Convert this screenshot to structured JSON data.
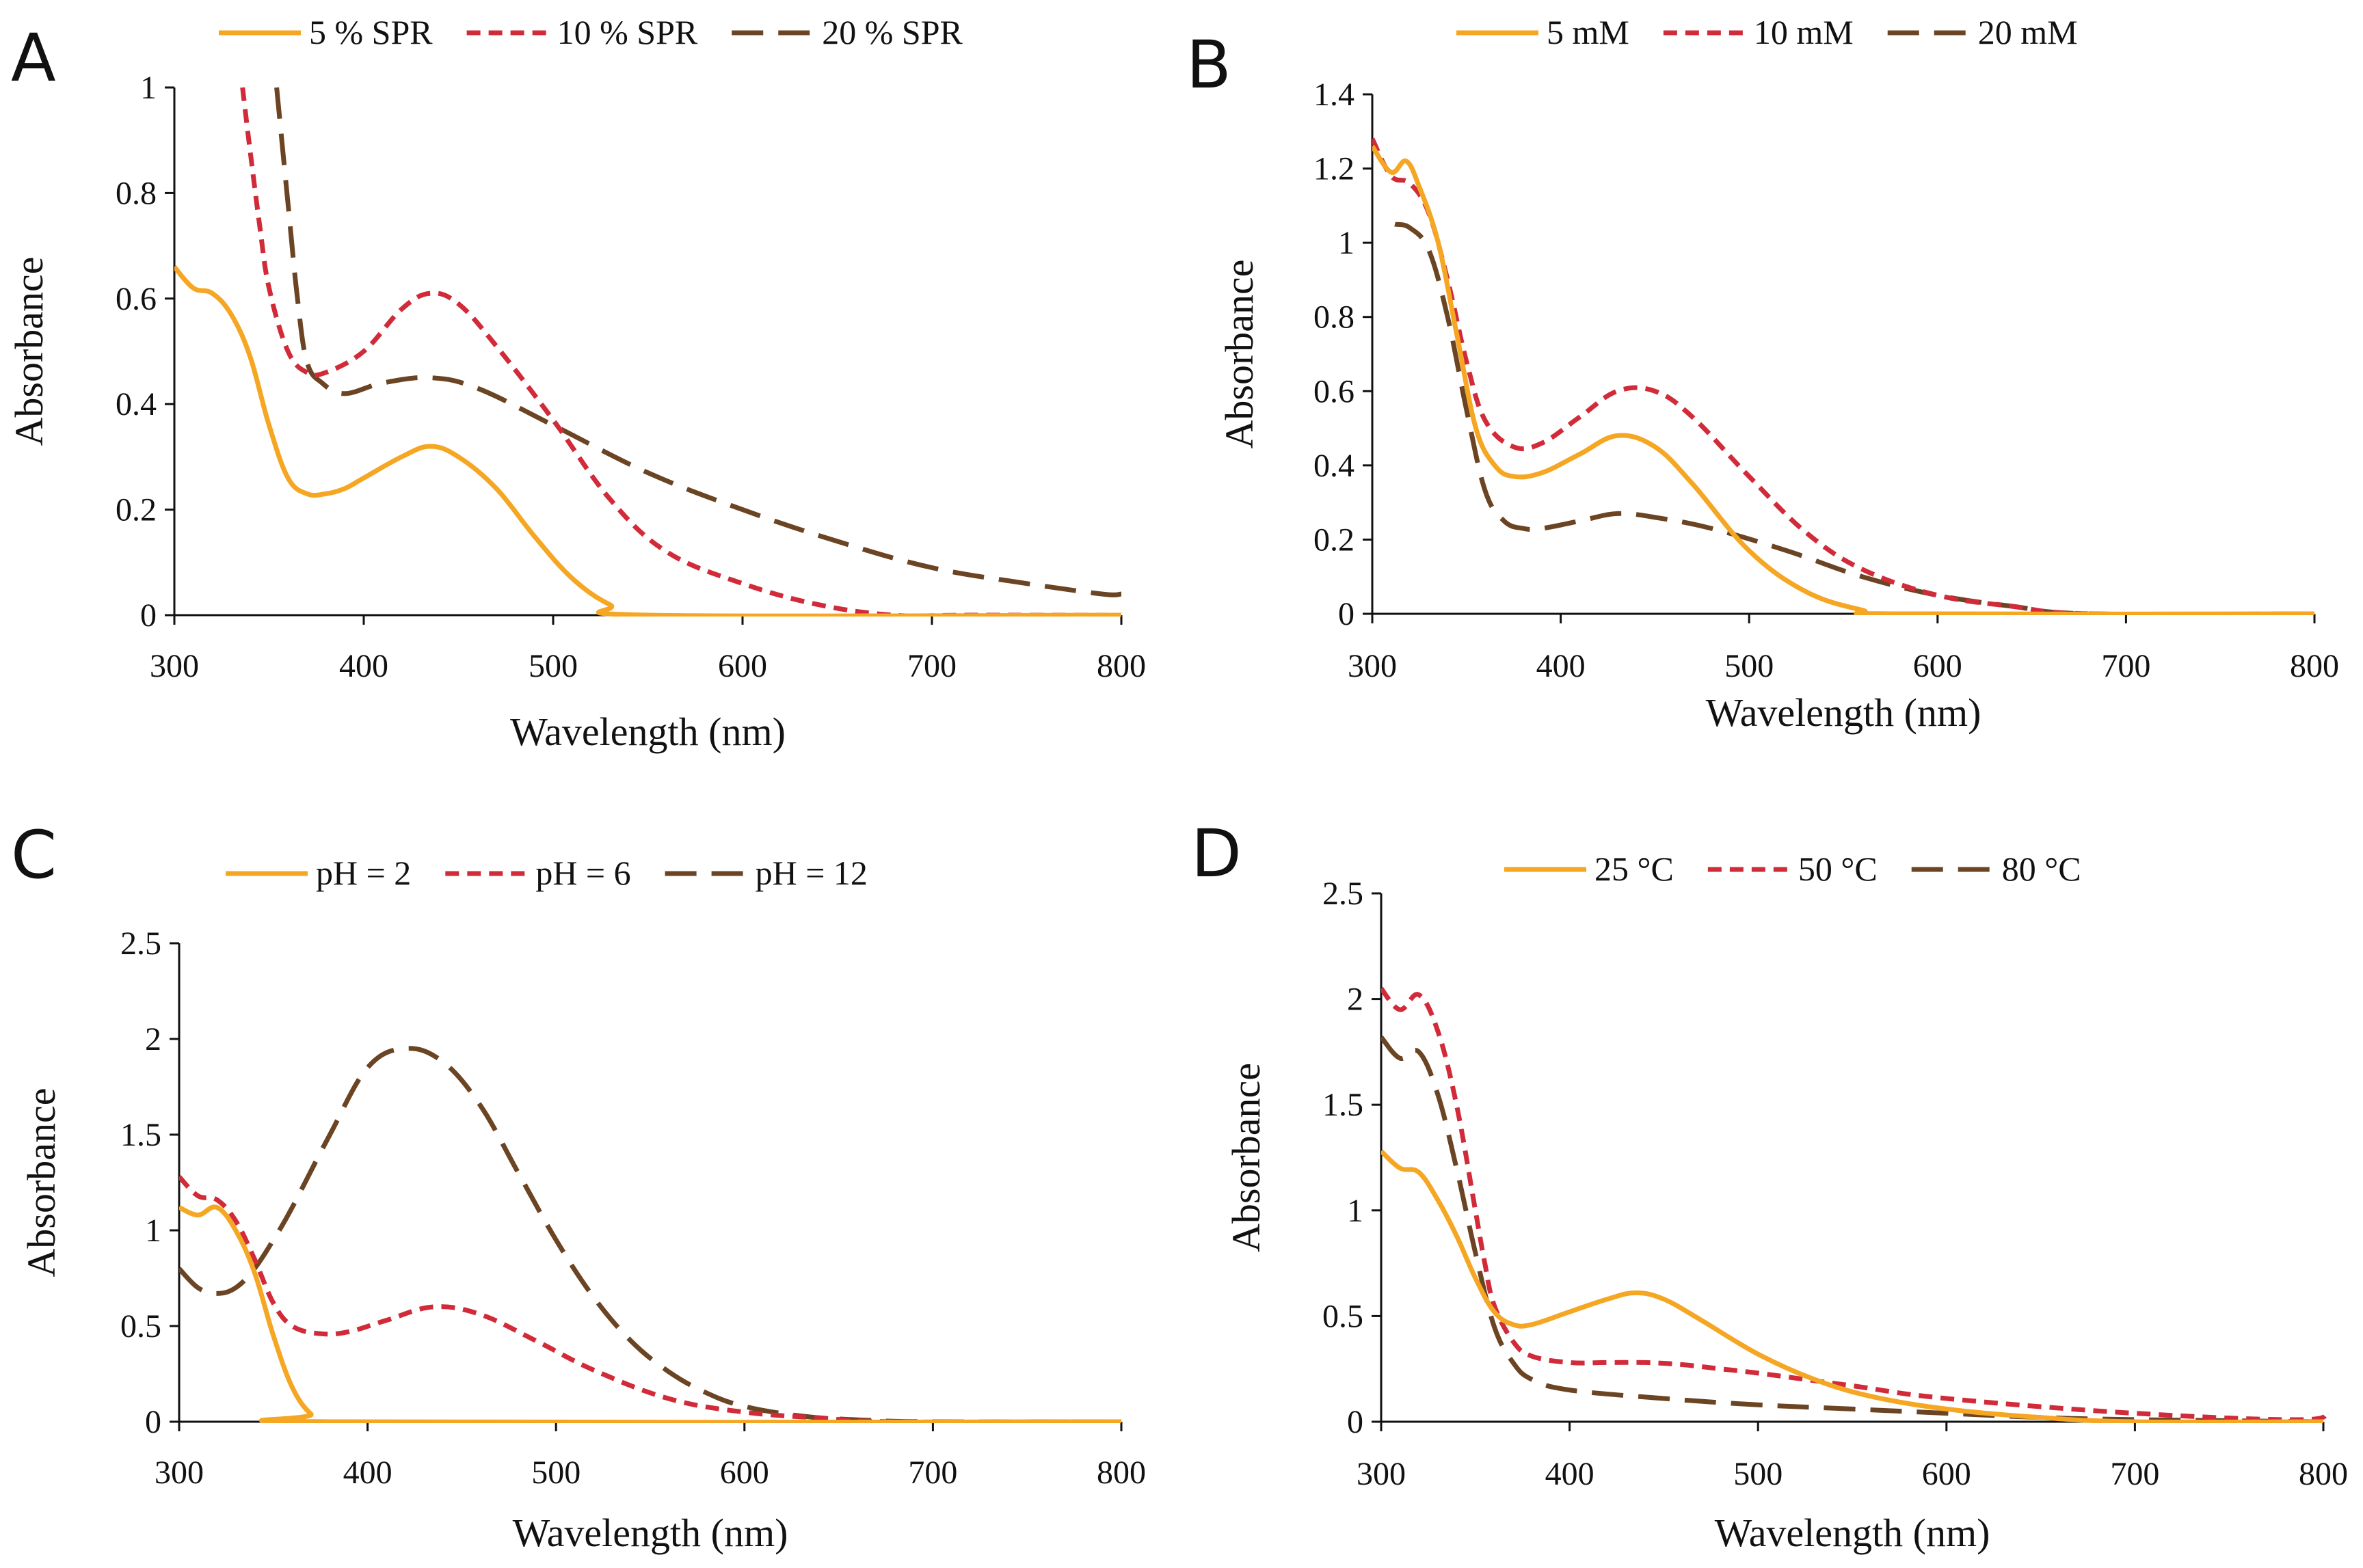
{
  "chart_data": [
    {
      "panel": "A",
      "type": "line",
      "xlabel": "Wavelength  (nm)",
      "ylabel": "Absorbance",
      "xlim": [
        300,
        800
      ],
      "ylim": [
        0,
        1
      ],
      "xticks": [
        "300",
        "400",
        "500",
        "600",
        "700",
        "800"
      ],
      "yticks": [
        "0",
        "0.2",
        "0.4",
        "0.6",
        "0.8",
        "1"
      ],
      "series": [
        {
          "name": "5 % SPR",
          "style": "solid",
          "color": "#F5A623",
          "x": [
            300,
            310,
            320,
            330,
            340,
            350,
            360,
            370,
            380,
            390,
            400,
            420,
            435,
            450,
            470,
            490,
            510,
            530,
            550,
            800
          ],
          "y": [
            0.66,
            0.62,
            0.61,
            0.57,
            0.49,
            0.36,
            0.26,
            0.23,
            0.23,
            0.24,
            0.26,
            0.3,
            0.32,
            0.3,
            0.24,
            0.15,
            0.07,
            0.02,
            0.0,
            0.0
          ]
        },
        {
          "name": "10 % SPR",
          "style": "dash",
          "color": "#D12B3A",
          "x": [
            336,
            340,
            345,
            350,
            360,
            370,
            380,
            400,
            420,
            435,
            450,
            470,
            500,
            530,
            560,
            600,
            640,
            680,
            720,
            800
          ],
          "y": [
            1.0,
            0.88,
            0.74,
            0.62,
            0.5,
            0.46,
            0.46,
            0.5,
            0.58,
            0.61,
            0.59,
            0.51,
            0.37,
            0.22,
            0.12,
            0.06,
            0.02,
            0.0,
            0.0,
            0.0
          ]
        },
        {
          "name": "20 % SPR",
          "style": "longdash",
          "color": "#6B4423",
          "x": [
            354,
            360,
            365,
            370,
            378,
            390,
            410,
            435,
            460,
            500,
            550,
            600,
            650,
            700,
            750,
            790,
            800
          ],
          "y": [
            1.0,
            0.78,
            0.6,
            0.48,
            0.44,
            0.42,
            0.44,
            0.45,
            0.43,
            0.36,
            0.27,
            0.2,
            0.14,
            0.09,
            0.06,
            0.04,
            0.04
          ]
        }
      ]
    },
    {
      "panel": "B",
      "type": "line",
      "xlabel": "Wavelength  (nm)",
      "ylabel": "Absorbance",
      "xlim": [
        300,
        800
      ],
      "ylim": [
        0,
        1.4
      ],
      "xticks": [
        "300",
        "400",
        "500",
        "600",
        "700",
        "800"
      ],
      "yticks": [
        "0",
        "0.2",
        "0.4",
        "0.6",
        "0.8",
        "1",
        "1.2",
        "1.4"
      ],
      "series": [
        {
          "name": "5 mM",
          "style": "solid",
          "color": "#F5A623",
          "x": [
            300,
            310,
            318,
            325,
            335,
            345,
            355,
            365,
            375,
            390,
            410,
            430,
            450,
            470,
            500,
            530,
            560,
            580,
            800
          ],
          "y": [
            1.26,
            1.19,
            1.22,
            1.15,
            1.0,
            0.75,
            0.5,
            0.4,
            0.37,
            0.38,
            0.43,
            0.48,
            0.45,
            0.35,
            0.17,
            0.06,
            0.01,
            0.0,
            0.0
          ]
        },
        {
          "name": "10 mM",
          "style": "dash",
          "color": "#D12B3A",
          "x": [
            300,
            310,
            320,
            330,
            340,
            350,
            360,
            375,
            390,
            410,
            430,
            450,
            470,
            500,
            530,
            560,
            600,
            640,
            680,
            800
          ],
          "y": [
            1.28,
            1.18,
            1.16,
            1.08,
            0.9,
            0.68,
            0.52,
            0.45,
            0.46,
            0.53,
            0.6,
            0.6,
            0.53,
            0.37,
            0.22,
            0.12,
            0.05,
            0.02,
            0.0,
            0.0
          ]
        },
        {
          "name": "20 mM",
          "style": "longdash",
          "color": "#6B4423",
          "x": [
            312,
            320,
            330,
            340,
            350,
            360,
            370,
            380,
            390,
            410,
            430,
            450,
            480,
            520,
            560,
            600,
            640,
            680,
            800
          ],
          "y": [
            1.05,
            1.04,
            0.98,
            0.8,
            0.55,
            0.33,
            0.25,
            0.23,
            0.23,
            0.25,
            0.27,
            0.26,
            0.23,
            0.17,
            0.1,
            0.05,
            0.02,
            0.0,
            0.0
          ]
        }
      ]
    },
    {
      "panel": "C",
      "type": "line",
      "xlabel": "Wavelength  (nm)",
      "ylabel": "Absorbance",
      "xlim": [
        300,
        800
      ],
      "ylim": [
        0,
        2.5
      ],
      "xticks": [
        "300",
        "400",
        "500",
        "600",
        "700",
        "800"
      ],
      "yticks": [
        "0",
        "0.5",
        "1",
        "1.5",
        "2",
        "2.5"
      ],
      "series": [
        {
          "name": "pH = 2",
          "style": "solid",
          "color": "#F5A623",
          "x": [
            300,
            310,
            320,
            330,
            340,
            350,
            360,
            370,
            380,
            800
          ],
          "y": [
            1.12,
            1.08,
            1.12,
            1.0,
            0.78,
            0.45,
            0.18,
            0.04,
            0.0,
            0.0
          ]
        },
        {
          "name": "pH = 6",
          "style": "dash",
          "color": "#D12B3A",
          "x": [
            300,
            310,
            320,
            330,
            340,
            350,
            360,
            375,
            390,
            410,
            435,
            460,
            490,
            520,
            560,
            600,
            640,
            680,
            800
          ],
          "y": [
            1.28,
            1.18,
            1.16,
            1.05,
            0.85,
            0.62,
            0.5,
            0.46,
            0.47,
            0.53,
            0.6,
            0.56,
            0.42,
            0.27,
            0.12,
            0.05,
            0.02,
            0.0,
            0.0
          ]
        },
        {
          "name": "pH = 12",
          "style": "longdash",
          "color": "#6B4423",
          "x": [
            300,
            310,
            320,
            330,
            340,
            350,
            360,
            380,
            400,
            420,
            440,
            460,
            480,
            500,
            520,
            540,
            560,
            580,
            600,
            630,
            660,
            700,
            800
          ],
          "y": [
            0.8,
            0.7,
            0.67,
            0.7,
            0.8,
            0.95,
            1.12,
            1.5,
            1.85,
            1.95,
            1.88,
            1.65,
            1.3,
            0.95,
            0.65,
            0.42,
            0.26,
            0.15,
            0.08,
            0.03,
            0.01,
            0.0,
            0.0
          ]
        }
      ]
    },
    {
      "panel": "D",
      "type": "line",
      "xlabel": "Wavelength  (nm)",
      "ylabel": "Absorbance",
      "xlim": [
        300,
        800
      ],
      "ylim": [
        0,
        2.5
      ],
      "xticks": [
        "300",
        "400",
        "500",
        "600",
        "700",
        "800"
      ],
      "yticks": [
        "0",
        "0.5",
        "1",
        "1.5",
        "2",
        "2.5"
      ],
      "series": [
        {
          "name": "25 °C",
          "style": "solid",
          "color": "#F5A623",
          "x": [
            300,
            310,
            320,
            330,
            340,
            350,
            360,
            370,
            380,
            400,
            420,
            435,
            450,
            470,
            500,
            530,
            560,
            600,
            650,
            700,
            800
          ],
          "y": [
            1.28,
            1.2,
            1.18,
            1.05,
            0.88,
            0.68,
            0.52,
            0.46,
            0.46,
            0.52,
            0.58,
            0.61,
            0.58,
            0.48,
            0.32,
            0.2,
            0.12,
            0.06,
            0.02,
            0.0,
            0.0
          ]
        },
        {
          "name": "50 °C",
          "style": "dash",
          "color": "#D12B3A",
          "x": [
            300,
            310,
            320,
            330,
            340,
            350,
            355,
            360,
            370,
            380,
            400,
            420,
            440,
            460,
            480,
            500,
            550,
            600,
            700,
            790,
            800
          ],
          "y": [
            2.05,
            1.95,
            2.02,
            1.85,
            1.5,
            1.0,
            0.75,
            0.55,
            0.38,
            0.31,
            0.28,
            0.28,
            0.28,
            0.27,
            0.25,
            0.23,
            0.17,
            0.11,
            0.04,
            0.01,
            0.06
          ]
        },
        {
          "name": "80 °C",
          "style": "longdash",
          "color": "#6B4423",
          "x": [
            300,
            310,
            320,
            330,
            340,
            350,
            360,
            370,
            380,
            400,
            450,
            500,
            550,
            600,
            650,
            700,
            800
          ],
          "y": [
            1.82,
            1.72,
            1.75,
            1.55,
            1.2,
            0.8,
            0.45,
            0.28,
            0.2,
            0.15,
            0.11,
            0.08,
            0.06,
            0.04,
            0.02,
            0.01,
            0.0
          ]
        }
      ]
    }
  ]
}
